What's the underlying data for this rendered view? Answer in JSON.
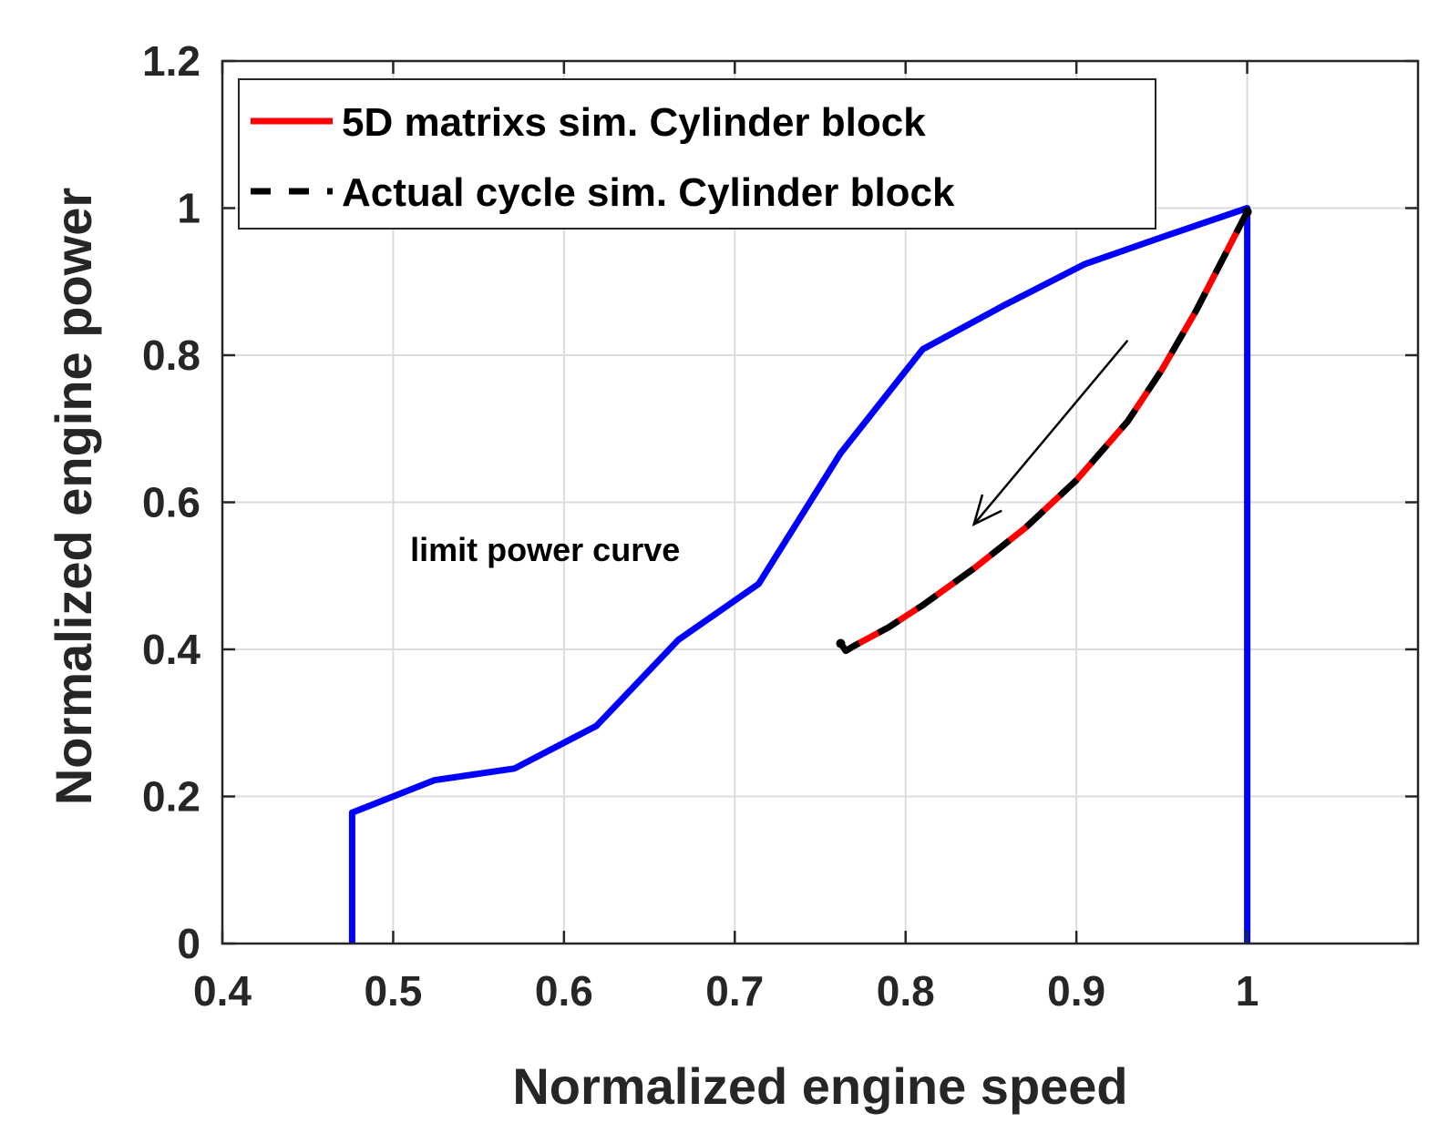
{
  "chart_data": {
    "type": "line",
    "title": "",
    "xlabel": "Normalized engine speed",
    "ylabel": "Normalized engine power",
    "xlim": [
      0.4,
      1.1
    ],
    "ylim": [
      0,
      1.2
    ],
    "xticks": [
      0.4,
      0.5,
      0.6,
      0.7,
      0.8,
      0.9,
      1
    ],
    "xtick_labels": [
      "0.4",
      "0.5",
      "0.6",
      "0.7",
      "0.8",
      "0.9",
      "1"
    ],
    "yticks": [
      0,
      0.2,
      0.4,
      0.6,
      0.8,
      1,
      1.2
    ],
    "ytick_labels": [
      "0",
      "0.2",
      "0.4",
      "0.6",
      "0.8",
      "1",
      "1.2"
    ],
    "grid": true,
    "legend_position": "top-left",
    "series": [
      {
        "name": "limit power curve",
        "in_legend": false,
        "color": "#0000ff",
        "style": "solid",
        "x": [
          0.476,
          0.476,
          0.524,
          0.571,
          0.619,
          0.667,
          0.714,
          0.762,
          0.81,
          0.857,
          0.905,
          0.952,
          1.0,
          1.0
        ],
        "y": [
          0.0,
          0.178,
          0.222,
          0.238,
          0.296,
          0.413,
          0.489,
          0.667,
          0.808,
          0.867,
          0.924,
          0.962,
          1.0,
          0.0
        ]
      },
      {
        "name": "5D matrixs sim. Cylinder block",
        "in_legend": true,
        "color": "#ff0000",
        "style": "solid",
        "x": [
          1.0,
          0.99,
          0.97,
          0.95,
          0.93,
          0.9,
          0.87,
          0.84,
          0.81,
          0.79,
          0.77,
          0.765,
          0.762
        ],
        "y": [
          0.995,
          0.95,
          0.86,
          0.78,
          0.71,
          0.63,
          0.565,
          0.51,
          0.46,
          0.43,
          0.405,
          0.398,
          0.408
        ]
      },
      {
        "name": "Actual cycle sim. Cylinder block",
        "in_legend": true,
        "color": "#000000",
        "style": "dashed",
        "x": [
          1.0,
          0.99,
          0.97,
          0.95,
          0.93,
          0.9,
          0.87,
          0.84,
          0.81,
          0.79,
          0.77,
          0.765,
          0.762
        ],
        "y": [
          0.995,
          0.95,
          0.86,
          0.78,
          0.71,
          0.63,
          0.565,
          0.51,
          0.46,
          0.43,
          0.405,
          0.398,
          0.408
        ]
      }
    ],
    "annotations": [
      {
        "text": "limit power curve",
        "x": 0.51,
        "y": 0.52
      }
    ],
    "arrows": [
      {
        "x_start": 0.93,
        "y_start": 0.82,
        "x_end": 0.84,
        "y_end": 0.57,
        "color": "#000000"
      }
    ]
  }
}
